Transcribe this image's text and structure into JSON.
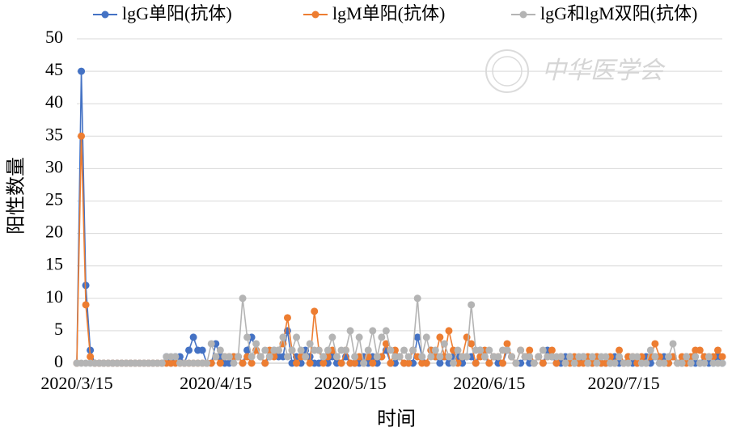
{
  "chart_data": {
    "type": "line",
    "ylabel": "阳性数量",
    "xlabel": "时间",
    "watermark": "中华医学会",
    "categories": [
      "2020/3/15",
      null,
      null,
      null,
      null,
      null,
      null,
      null,
      null,
      null,
      null,
      null,
      null,
      null,
      null,
      null,
      null,
      null,
      null,
      null,
      null,
      null,
      null,
      null,
      null,
      null,
      null,
      null,
      null,
      null,
      null,
      "2020/4/15",
      null,
      null,
      null,
      null,
      null,
      null,
      null,
      null,
      null,
      null,
      null,
      null,
      null,
      null,
      null,
      null,
      null,
      null,
      null,
      null,
      null,
      null,
      null,
      null,
      null,
      null,
      null,
      null,
      null,
      "2020/5/15",
      null,
      null,
      null,
      null,
      null,
      null,
      null,
      null,
      null,
      null,
      null,
      null,
      null,
      null,
      null,
      null,
      null,
      null,
      null,
      null,
      null,
      null,
      null,
      null,
      null,
      null,
      null,
      null,
      null,
      null,
      "2020/6/15",
      null,
      null,
      null,
      null,
      null,
      null,
      null,
      null,
      null,
      null,
      null,
      null,
      null,
      null,
      null,
      null,
      null,
      null,
      null,
      null,
      null,
      null,
      null,
      null,
      null,
      null,
      null,
      null,
      null,
      "2020/7/15",
      null,
      null,
      null,
      null,
      null,
      null,
      null,
      null,
      null,
      null,
      null,
      null,
      null,
      null,
      null,
      null,
      null,
      null,
      null,
      null,
      null,
      null
    ],
    "series": [
      {
        "name": "lgG单阳(抗体)",
        "color": "#4472c4",
        "values": [
          0,
          45,
          12,
          2,
          0,
          0,
          0,
          0,
          0,
          0,
          0,
          0,
          0,
          0,
          0,
          0,
          0,
          0,
          0,
          0,
          1,
          0,
          1,
          1,
          0,
          2,
          4,
          2,
          2,
          0,
          0,
          3,
          1,
          0,
          0,
          1,
          1,
          0,
          2,
          4,
          2,
          1,
          0,
          1,
          2,
          1,
          1,
          5,
          0,
          1,
          0,
          2,
          1,
          0,
          0,
          1,
          0,
          1,
          0,
          0,
          1,
          0,
          0,
          0,
          1,
          0,
          1,
          0,
          1,
          2,
          0,
          0,
          1,
          0,
          0,
          0,
          4,
          1,
          0,
          2,
          1,
          0,
          1,
          0,
          1,
          1,
          0,
          1,
          1,
          0,
          2,
          1,
          0,
          1,
          0,
          0,
          2,
          1,
          0,
          0,
          1,
          0,
          0,
          1,
          0,
          2,
          1,
          0,
          0,
          1,
          1,
          0,
          0,
          1,
          0,
          0,
          1,
          0,
          0,
          0,
          1,
          0,
          0,
          1,
          0,
          0,
          0,
          1,
          0,
          1,
          0,
          1,
          0,
          1,
          0,
          0,
          1,
          0,
          0,
          0,
          1,
          0,
          0,
          1,
          0
        ]
      },
      {
        "name": "lgM单阳(抗体)",
        "color": "#ed7d31",
        "values": [
          0,
          35,
          9,
          1,
          0,
          0,
          0,
          0,
          0,
          0,
          0,
          0,
          0,
          0,
          0,
          0,
          0,
          0,
          0,
          0,
          0,
          0,
          0,
          0,
          0,
          0,
          0,
          0,
          0,
          0,
          0,
          1,
          0,
          1,
          1,
          1,
          1,
          0,
          1,
          0,
          2,
          1,
          0,
          2,
          1,
          2,
          3,
          7,
          2,
          0,
          1,
          1,
          0,
          8,
          2,
          0,
          1,
          2,
          1,
          0,
          2,
          0,
          0,
          1,
          0,
          1,
          0,
          1,
          1,
          3,
          0,
          2,
          1,
          0,
          0,
          2,
          1,
          0,
          0,
          2,
          1,
          4,
          1,
          5,
          2,
          0,
          1,
          4,
          3,
          0,
          1,
          2,
          0,
          1,
          1,
          0,
          3,
          1,
          0,
          2,
          1,
          2,
          0,
          1,
          0,
          1,
          2,
          0,
          1,
          0,
          0,
          1,
          0,
          0,
          1,
          0,
          1,
          0,
          0,
          1,
          0,
          2,
          0,
          1,
          1,
          0,
          1,
          0,
          1,
          3,
          1,
          0,
          0,
          1,
          0,
          1,
          0,
          1,
          2,
          2,
          1,
          1,
          1,
          2,
          1
        ]
      },
      {
        "name": "lgG和lgM双阳(抗体)",
        "color": "#b4b4b4",
        "values": [
          0,
          0,
          0,
          0,
          0,
          0,
          0,
          0,
          0,
          0,
          0,
          0,
          0,
          0,
          0,
          0,
          0,
          0,
          0,
          0,
          1,
          1,
          1,
          0,
          0,
          0,
          0,
          0,
          0,
          0,
          3,
          1,
          2,
          1,
          1,
          0,
          1,
          10,
          4,
          1,
          3,
          1,
          2,
          1,
          2,
          2,
          4,
          1,
          2,
          4,
          2,
          1,
          3,
          2,
          2,
          1,
          2,
          4,
          1,
          2,
          2,
          5,
          1,
          4,
          0,
          2,
          5,
          1,
          4,
          5,
          2,
          1,
          1,
          2,
          1,
          2,
          10,
          1,
          4,
          1,
          2,
          1,
          3,
          1,
          0,
          2,
          1,
          1,
          9,
          2,
          2,
          1,
          2,
          1,
          1,
          2,
          2,
          1,
          0,
          2,
          1,
          1,
          0,
          1,
          2,
          1,
          1,
          1,
          1,
          0,
          1,
          0,
          1,
          1,
          0,
          1,
          0,
          1,
          1,
          0,
          0,
          1,
          0,
          0,
          1,
          1,
          0,
          0,
          2,
          1,
          0,
          0,
          1,
          3,
          0,
          0,
          1,
          0,
          1,
          0,
          0,
          1,
          0,
          0,
          0
        ]
      }
    ],
    "ylim": [
      0,
      50
    ],
    "yticks": [
      0,
      5,
      10,
      15,
      20,
      25,
      30,
      35,
      40,
      45,
      50
    ],
    "grid": true,
    "legend": "top"
  }
}
